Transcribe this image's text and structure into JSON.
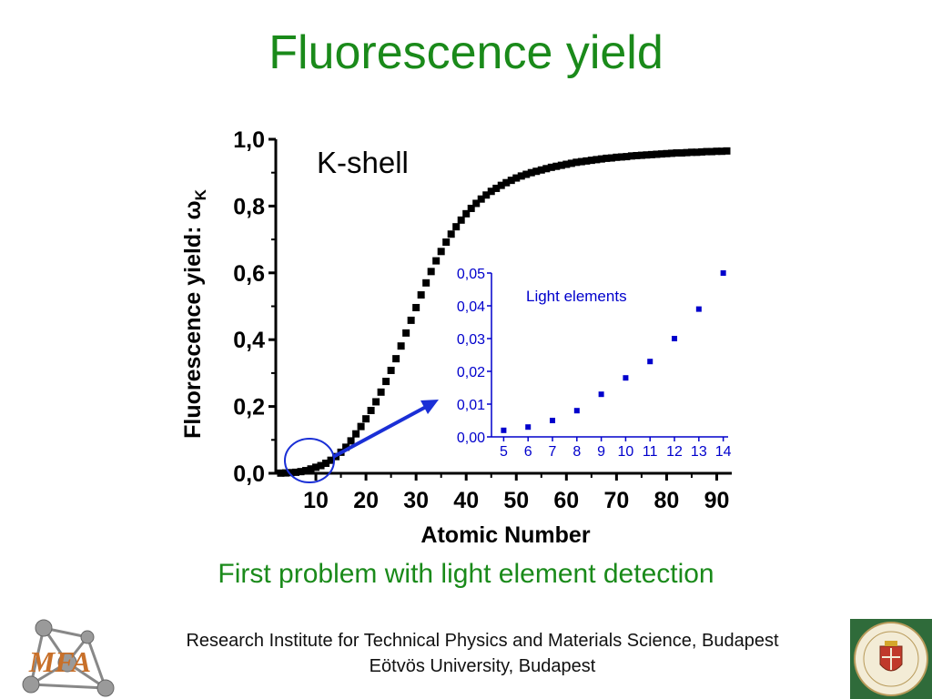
{
  "slide": {
    "title": "Fluorescence yield",
    "subtitle": "First problem with light element detection",
    "footer_line1": "Research Institute for Technical Physics and Materials Science, Budapest",
    "footer_line2": "Eötvös University, Budapest",
    "logo_left_text": "MFA"
  },
  "colors": {
    "title": "#1a8a1a",
    "main_series": "#000000",
    "inset_series": "#0000cc",
    "annotation": "#1a2fd6"
  },
  "chart_data": [
    {
      "type": "scatter",
      "title": "",
      "xlabel": "Atomic Number",
      "ylabel": "Fluorescence yield: ωK",
      "ylabel_main": "Fluorescence yield: ω",
      "ylabel_sub": "K",
      "annotation": "K-shell",
      "xlim": [
        2,
        93
      ],
      "ylim": [
        0,
        1.0
      ],
      "x_ticks": [
        10,
        20,
        30,
        40,
        50,
        60,
        70,
        80,
        90
      ],
      "x_tick_labels": [
        "10",
        "20",
        "30",
        "40",
        "50",
        "60",
        "70",
        "80",
        "90"
      ],
      "y_ticks": [
        0,
        0.2,
        0.4,
        0.6,
        0.8,
        1.0
      ],
      "y_tick_labels": [
        "0,0",
        "0,2",
        "0,4",
        "0,6",
        "0,8",
        "1,0"
      ],
      "grid": false,
      "series": [
        {
          "x": [
            3,
            4,
            5,
            6,
            7,
            8,
            9,
            10,
            11,
            12,
            13,
            14,
            15,
            16,
            17,
            18,
            19,
            20,
            21,
            22,
            23,
            24,
            25,
            26,
            27,
            28,
            29,
            30,
            31,
            32,
            33,
            34,
            35,
            36,
            37,
            38,
            39,
            40,
            41,
            42,
            43,
            44,
            45,
            46,
            47,
            48,
            49,
            50,
            51,
            52,
            53,
            54,
            55,
            56,
            57,
            58,
            59,
            60,
            61,
            62,
            63,
            64,
            65,
            66,
            67,
            68,
            69,
            70,
            71,
            72,
            73,
            74,
            75,
            76,
            77,
            78,
            79,
            80,
            81,
            82,
            83,
            84,
            85,
            86,
            87,
            88,
            89,
            90,
            91,
            92
          ],
          "y": [
            0.0005,
            0.001,
            0.002,
            0.003,
            0.005,
            0.008,
            0.013,
            0.018,
            0.023,
            0.03,
            0.039,
            0.05,
            0.063,
            0.078,
            0.097,
            0.118,
            0.14,
            0.163,
            0.188,
            0.214,
            0.243,
            0.275,
            0.308,
            0.343,
            0.381,
            0.42,
            0.458,
            0.496,
            0.534,
            0.57,
            0.604,
            0.636,
            0.664,
            0.692,
            0.716,
            0.738,
            0.758,
            0.777,
            0.793,
            0.808,
            0.821,
            0.833,
            0.844,
            0.853,
            0.862,
            0.87,
            0.877,
            0.884,
            0.89,
            0.895,
            0.9,
            0.904,
            0.908,
            0.912,
            0.916,
            0.919,
            0.922,
            0.925,
            0.928,
            0.931,
            0.933,
            0.935,
            0.937,
            0.939,
            0.941,
            0.943,
            0.944,
            0.946,
            0.947,
            0.948,
            0.95,
            0.951,
            0.952,
            0.953,
            0.954,
            0.955,
            0.956,
            0.957,
            0.958,
            0.959,
            0.959,
            0.96,
            0.961,
            0.961,
            0.962,
            0.963,
            0.963,
            0.964,
            0.964,
            0.965
          ]
        }
      ]
    },
    {
      "type": "scatter",
      "title": "",
      "annotation": "Light elements",
      "xlabel": "",
      "ylabel": "",
      "xlim": [
        4.5,
        14.2
      ],
      "ylim": [
        0,
        0.05
      ],
      "x_ticks": [
        5,
        6,
        7,
        8,
        9,
        10,
        11,
        12,
        13,
        14
      ],
      "x_tick_labels": [
        "5",
        "6",
        "7",
        "8",
        "9",
        "10",
        "11",
        "12",
        "13",
        "14"
      ],
      "y_ticks": [
        0,
        0.01,
        0.02,
        0.03,
        0.04,
        0.05
      ],
      "y_tick_labels": [
        "0,00",
        "0,01",
        "0,02",
        "0,03",
        "0,04",
        "0,05"
      ],
      "grid": false,
      "series": [
        {
          "x": [
            5,
            6,
            7,
            8,
            9,
            10,
            11,
            12,
            13,
            14
          ],
          "y": [
            0.002,
            0.003,
            0.005,
            0.008,
            0.013,
            0.018,
            0.023,
            0.03,
            0.039,
            0.05
          ]
        }
      ]
    }
  ]
}
